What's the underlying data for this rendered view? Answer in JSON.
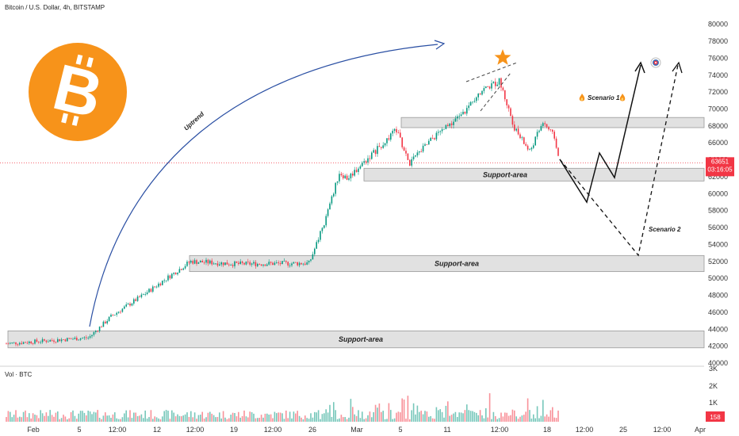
{
  "header": {
    "title": "Bitcoin / U.S. Dollar, 4h, BITSTAMP"
  },
  "volume_panel": {
    "label": "Vol · BTC",
    "value_badge": "158"
  },
  "price_badge": {
    "price": "63651",
    "countdown": "03:16:05",
    "color": "#f23645"
  },
  "colors": {
    "up": "#089981",
    "down": "#f23645",
    "zone_fill": "#dcdcdc",
    "trend_arrow": "#2a4fa3",
    "scenario_line": "#000000",
    "star": "#f7931a",
    "logo": "#f7931a"
  },
  "icons": [
    "bitcoin-logo-icon",
    "star-icon",
    "fire-icon",
    "target-icon"
  ],
  "chart_data": {
    "type": "candlestick",
    "symbol": "Bitcoin / U.S. Dollar",
    "interval": "4h",
    "exchange": "BITSTAMP",
    "ylim": [
      40000,
      81000
    ],
    "y_ticks": [
      "80000",
      "78000",
      "76000",
      "74000",
      "72000",
      "70000",
      "68000",
      "66000",
      "64000",
      "62000",
      "60000",
      "58000",
      "56000",
      "54000",
      "52000",
      "50000",
      "48000",
      "46000",
      "44000",
      "42000",
      "40000"
    ],
    "x_ticks": [
      "Feb",
      "5",
      "12:00",
      "12",
      "12:00",
      "19",
      "12:00",
      "26",
      "Mar",
      "5",
      "11",
      "12:00",
      "18",
      "12:00",
      "25",
      "12:00",
      "Apr"
    ],
    "volume_ticks": [
      "3K",
      "2K",
      "1K"
    ],
    "price_path_anchors": [
      {
        "date": "Jan 29",
        "close": 42300
      },
      {
        "date": "Feb 7",
        "close": 43000
      },
      {
        "date": "Feb 9",
        "close": 45500
      },
      {
        "date": "Feb 11",
        "close": 48000
      },
      {
        "date": "Feb 14",
        "close": 52000
      },
      {
        "date": "Feb 20",
        "close": 51700
      },
      {
        "date": "Feb 26",
        "close": 51800
      },
      {
        "date": "Feb 27",
        "close": 56800
      },
      {
        "date": "Feb 28",
        "close": 62500
      },
      {
        "date": "Mar 1",
        "close": 61800
      },
      {
        "date": "Mar 4",
        "close": 67500
      },
      {
        "date": "Mar 5",
        "close": 63500
      },
      {
        "date": "Mar 7",
        "close": 66500
      },
      {
        "date": "Mar 10",
        "close": 69500
      },
      {
        "date": "Mar 11",
        "close": 72000
      },
      {
        "date": "Mar 14",
        "close": 73300
      },
      {
        "date": "Mar 16",
        "close": 67500
      },
      {
        "date": "Mar 17",
        "close": 65000
      },
      {
        "date": "Mar 18",
        "close": 68500
      },
      {
        "date": "Mar 19",
        "close": 66500
      },
      {
        "date": "Mar 20",
        "close": 63651
      }
    ],
    "support_areas": [
      {
        "label": "Support-area",
        "low": 61500,
        "high": 63000
      },
      {
        "label": "Support-area",
        "low": 50800,
        "high": 52700
      },
      {
        "label": "Support-area",
        "low": 41800,
        "high": 43800
      }
    ],
    "resistance_zone": {
      "low": 67800,
      "high": 69000
    },
    "annotations": [
      {
        "text": "Uptrend"
      },
      {
        "text": "Scenario 1"
      },
      {
        "text": "Scenario 2"
      }
    ],
    "scenario_1_path": [
      63651,
      58800,
      64000,
      61500,
      74500
    ],
    "scenario_2_path": [
      63651,
      52700,
      74500
    ],
    "current_price": 63651
  }
}
